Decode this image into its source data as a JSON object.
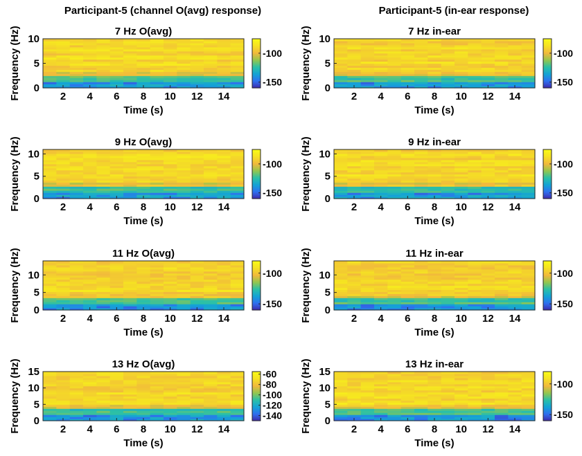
{
  "column_titles": [
    "Participant-5 (channel O(avg) response)",
    "Participant-5 (in-ear response)"
  ],
  "colormap": [
    "#3e26a8",
    "#2f6fef",
    "#14a3d6",
    "#2bc0a7",
    "#93c64e",
    "#f1b93c",
    "#f5e024",
    "#f9fb15"
  ],
  "chart_data": [
    {
      "type": "heatmap",
      "title": "7 Hz O(avg)",
      "xlabel": "Time (s)",
      "ylabel": "Frequency (Hz)",
      "xlim": [
        0.5,
        15.5
      ],
      "ylim": [
        0,
        10
      ],
      "xticks": [
        2,
        4,
        6,
        8,
        10,
        12,
        14
      ],
      "yticks": [
        0,
        5,
        10
      ],
      "clim": [
        -160,
        -75
      ],
      "colorbar_ticks": [
        -100,
        -150
      ],
      "seed": 11
    },
    {
      "type": "heatmap",
      "title": "7 Hz in-ear",
      "xlabel": "Time (s)",
      "ylabel": "Frequency (Hz)",
      "xlim": [
        0.5,
        15.5
      ],
      "ylim": [
        0,
        10
      ],
      "xticks": [
        2,
        4,
        6,
        8,
        10,
        12,
        14
      ],
      "yticks": [
        0,
        5,
        10
      ],
      "clim": [
        -160,
        -75
      ],
      "colorbar_ticks": [
        -100,
        -150
      ],
      "seed": 23
    },
    {
      "type": "heatmap",
      "title": "9 Hz O(avg)",
      "xlabel": "Time (s)",
      "ylabel": "Frequency (Hz)",
      "xlim": [
        0.5,
        15.5
      ],
      "ylim": [
        0,
        11
      ],
      "xticks": [
        2,
        4,
        6,
        8,
        10,
        12,
        14
      ],
      "yticks": [
        0,
        5,
        10
      ],
      "clim": [
        -160,
        -75
      ],
      "colorbar_ticks": [
        -100,
        -150
      ],
      "seed": 37
    },
    {
      "type": "heatmap",
      "title": "9 Hz in-ear",
      "xlabel": "Time (s)",
      "ylabel": "Frequency (Hz)",
      "xlim": [
        0.5,
        15.5
      ],
      "ylim": [
        0,
        11
      ],
      "xticks": [
        2,
        4,
        6,
        8,
        10,
        12,
        14
      ],
      "yticks": [
        0,
        5,
        10
      ],
      "clim": [
        -160,
        -75
      ],
      "colorbar_ticks": [
        -100,
        -150
      ],
      "seed": 41
    },
    {
      "type": "heatmap",
      "title": "11 Hz O(avg)",
      "xlabel": "Time (s)",
      "ylabel": "Frequency (Hz)",
      "xlim": [
        0.5,
        15.5
      ],
      "ylim": [
        0,
        14
      ],
      "xticks": [
        2,
        4,
        6,
        8,
        10,
        12,
        14
      ],
      "yticks": [
        0,
        5,
        10
      ],
      "clim": [
        -160,
        -80
      ],
      "colorbar_ticks": [
        -100,
        -150
      ],
      "seed": 53
    },
    {
      "type": "heatmap",
      "title": "11 Hz in-ear",
      "xlabel": "Time (s)",
      "ylabel": "Frequency (Hz)",
      "xlim": [
        0.5,
        15.5
      ],
      "ylim": [
        0,
        14
      ],
      "xticks": [
        2,
        4,
        6,
        8,
        10,
        12,
        14
      ],
      "yticks": [
        0,
        5,
        10
      ],
      "clim": [
        -160,
        -80
      ],
      "colorbar_ticks": [
        -100,
        -150
      ],
      "seed": 67
    },
    {
      "type": "heatmap",
      "title": "13 Hz O(avg)",
      "xlabel": "Time (s)",
      "ylabel": "Frequency (Hz)",
      "xlim": [
        0.5,
        15.5
      ],
      "ylim": [
        0,
        15
      ],
      "xticks": [
        2,
        4,
        6,
        8,
        10,
        12,
        14
      ],
      "yticks": [
        0,
        5,
        10,
        15
      ],
      "clim": [
        -150,
        -55
      ],
      "colorbar_ticks": [
        -60,
        -80,
        -100,
        -120,
        -140
      ],
      "seed": 79
    },
    {
      "type": "heatmap",
      "title": "13 Hz in-ear",
      "xlabel": "Time (s)",
      "ylabel": "Frequency (Hz)",
      "xlim": [
        0.5,
        15.5
      ],
      "ylim": [
        0,
        15
      ],
      "xticks": [
        2,
        4,
        6,
        8,
        10,
        12,
        14
      ],
      "yticks": [
        0,
        5,
        10,
        15
      ],
      "clim": [
        -160,
        -80
      ],
      "colorbar_ticks": [
        -100,
        -150
      ],
      "seed": 97
    }
  ]
}
